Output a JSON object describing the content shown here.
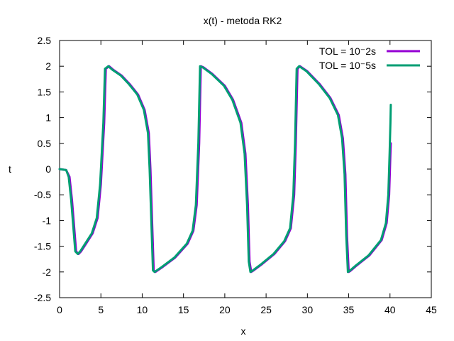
{
  "chart_data": {
    "type": "line",
    "title": "x(t)  -  metoda  RK2",
    "xlabel": "x",
    "ylabel": "t",
    "xlim": [
      0,
      45
    ],
    "ylim": [
      -2.5,
      2.5
    ],
    "xticks": [
      "0",
      "5",
      "10",
      "15",
      "20",
      "25",
      "30",
      "35",
      "40",
      "45"
    ],
    "yticks": [
      "-2.5",
      "-2",
      "-1.5",
      "-1",
      "-0.5",
      "0",
      "0.5",
      "1",
      "1.5",
      "2",
      "2.5"
    ],
    "legend_position": "top-right",
    "grid": false,
    "series": [
      {
        "name": "TOL = 10⁻2s",
        "color": "#9400d3",
        "x": [
          0,
          0.8,
          1.2,
          1.5,
          2.0,
          2.3,
          2.6,
          3.2,
          4.0,
          4.6,
          5.0,
          5.4,
          5.6,
          6.0,
          6.5,
          7.5,
          8.5,
          9.5,
          10.3,
          10.8,
          11.0,
          11.2,
          11.4,
          11.6,
          12.5,
          14.0,
          15.5,
          16.2,
          16.6,
          16.9,
          17.1,
          17.4,
          18.5,
          20.0,
          21.0,
          22.0,
          22.5,
          22.8,
          23.0,
          23.2,
          23.5,
          24.5,
          26.0,
          27.3,
          28.0,
          28.4,
          28.6,
          28.8,
          29.1,
          30.0,
          31.5,
          32.8,
          33.8,
          34.3,
          34.6,
          34.8,
          35.0,
          35.2,
          36.0,
          37.5,
          39.0,
          39.6,
          39.9,
          40.05,
          40.1
        ],
        "y": [
          0,
          -0.02,
          -0.15,
          -0.6,
          -1.6,
          -1.65,
          -1.6,
          -1.45,
          -1.25,
          -0.95,
          -0.3,
          0.9,
          1.95,
          2.0,
          1.93,
          1.82,
          1.65,
          1.45,
          1.15,
          0.7,
          0.0,
          -1.0,
          -1.97,
          -2.0,
          -1.9,
          -1.72,
          -1.45,
          -1.2,
          -0.7,
          0.5,
          2.0,
          1.98,
          1.85,
          1.62,
          1.35,
          0.9,
          0.3,
          -0.7,
          -1.8,
          -2.0,
          -1.97,
          -1.85,
          -1.65,
          -1.4,
          -1.15,
          -0.5,
          0.5,
          1.95,
          2.0,
          1.9,
          1.65,
          1.38,
          1.05,
          0.6,
          -0.1,
          -1.3,
          -2.0,
          -1.98,
          -1.87,
          -1.68,
          -1.38,
          -1.05,
          -0.5,
          0.3,
          0.5
        ]
      },
      {
        "name": "TOL = 10⁻5s",
        "color": "#009e73",
        "x": [
          0,
          0.8,
          1.1,
          1.4,
          1.9,
          2.2,
          2.5,
          3.1,
          3.9,
          4.5,
          4.9,
          5.3,
          5.5,
          5.9,
          6.4,
          7.4,
          8.4,
          9.4,
          10.2,
          10.7,
          10.9,
          11.1,
          11.3,
          11.5,
          12.4,
          13.9,
          15.4,
          16.1,
          16.5,
          16.8,
          17.0,
          17.3,
          18.4,
          19.9,
          20.9,
          21.9,
          22.4,
          22.7,
          22.9,
          23.1,
          23.4,
          24.4,
          25.9,
          27.2,
          27.9,
          28.3,
          28.5,
          28.7,
          29.0,
          29.9,
          31.4,
          32.7,
          33.7,
          34.2,
          34.5,
          34.7,
          34.9,
          35.1,
          35.9,
          37.4,
          38.9,
          39.5,
          39.8,
          39.95,
          40.05,
          40.1
        ],
        "y": [
          0,
          -0.02,
          -0.15,
          -0.6,
          -1.6,
          -1.65,
          -1.6,
          -1.45,
          -1.25,
          -0.95,
          -0.3,
          0.9,
          1.95,
          2.0,
          1.93,
          1.82,
          1.65,
          1.45,
          1.15,
          0.7,
          0.0,
          -1.0,
          -1.97,
          -2.0,
          -1.9,
          -1.72,
          -1.45,
          -1.2,
          -0.7,
          0.5,
          2.0,
          1.98,
          1.85,
          1.62,
          1.35,
          0.9,
          0.3,
          -0.7,
          -1.8,
          -2.0,
          -1.97,
          -1.85,
          -1.65,
          -1.4,
          -1.15,
          -0.5,
          0.5,
          1.95,
          2.0,
          1.9,
          1.65,
          1.38,
          1.05,
          0.6,
          -0.1,
          -1.3,
          -2.0,
          -1.98,
          -1.87,
          -1.68,
          -1.38,
          -1.05,
          -0.5,
          0.3,
          0.9,
          1.25
        ]
      }
    ]
  }
}
